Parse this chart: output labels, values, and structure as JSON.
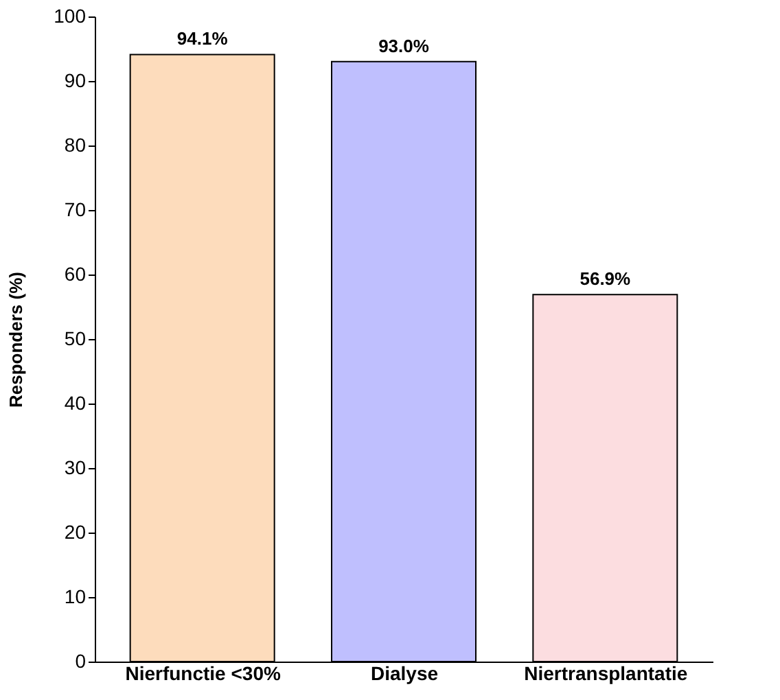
{
  "chart_data": {
    "type": "bar",
    "ylabel": "Responders (%)",
    "categories": [
      "Nierfunctie <30%",
      "Dialyse",
      "Niertransplantatie"
    ],
    "values": [
      94.1,
      93.0,
      56.9
    ],
    "value_labels": [
      "94.1%",
      "93.0%",
      "56.9%"
    ],
    "colors": [
      "#fddcbc",
      "#bfbffe",
      "#fcdde0"
    ],
    "ylim": [
      0,
      100
    ],
    "yticks": [
      0,
      10,
      20,
      30,
      40,
      50,
      60,
      70,
      80,
      90,
      100
    ],
    "grid": false
  }
}
